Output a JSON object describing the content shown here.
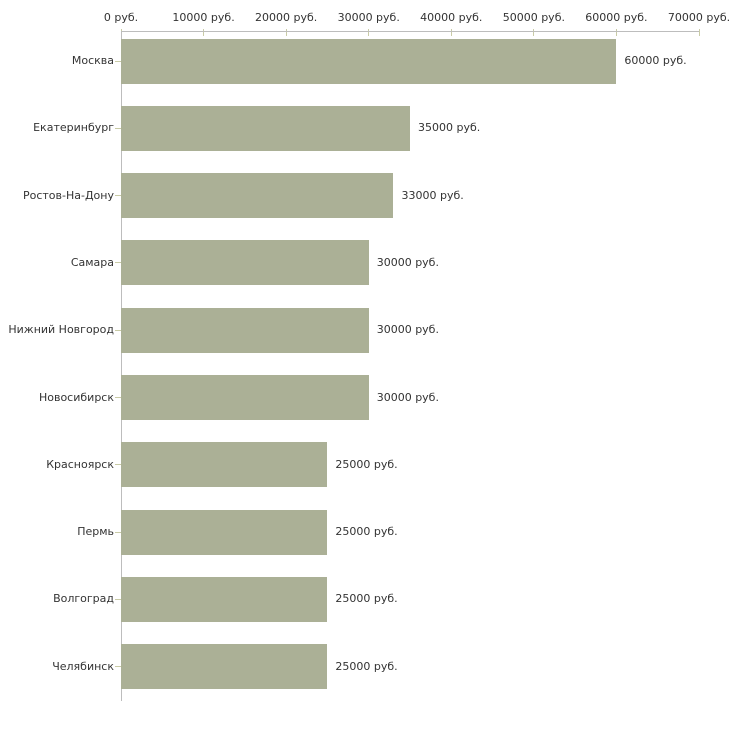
{
  "chart_data": {
    "type": "bar",
    "orientation": "horizontal",
    "title": "",
    "unit": "руб.",
    "categories": [
      "Москва",
      "Екатеринбург",
      "Ростов-На-Дону",
      "Самара",
      "Нижний Новгород",
      "Новосибирск",
      "Красноярск",
      "Пермь",
      "Волгоград",
      "Челябинск"
    ],
    "values": [
      60000,
      35000,
      33000,
      30000,
      30000,
      30000,
      25000,
      25000,
      25000,
      25000
    ],
    "value_labels": [
      "60000 руб.",
      "35000 руб.",
      "33000 руб.",
      "30000 руб.",
      "30000 руб.",
      "30000 руб.",
      "25000 руб.",
      "25000 руб.",
      "25000 руб.",
      "25000 руб."
    ],
    "x_ticks": [
      0,
      10000,
      20000,
      30000,
      40000,
      50000,
      60000,
      70000
    ],
    "x_tick_labels": [
      "0 руб.",
      "10000 руб.",
      "20000 руб.",
      "30000 руб.",
      "40000 руб.",
      "50000 руб.",
      "60000 руб.",
      "70000 руб."
    ],
    "xlim": [
      0,
      70000
    ],
    "grid": false,
    "legend": "none",
    "bar_color": "#abb096",
    "axis_color": "#bdbdbd",
    "tick_color": "#c9cba6",
    "text_color": "#333333",
    "background_color": "#ffffff"
  }
}
